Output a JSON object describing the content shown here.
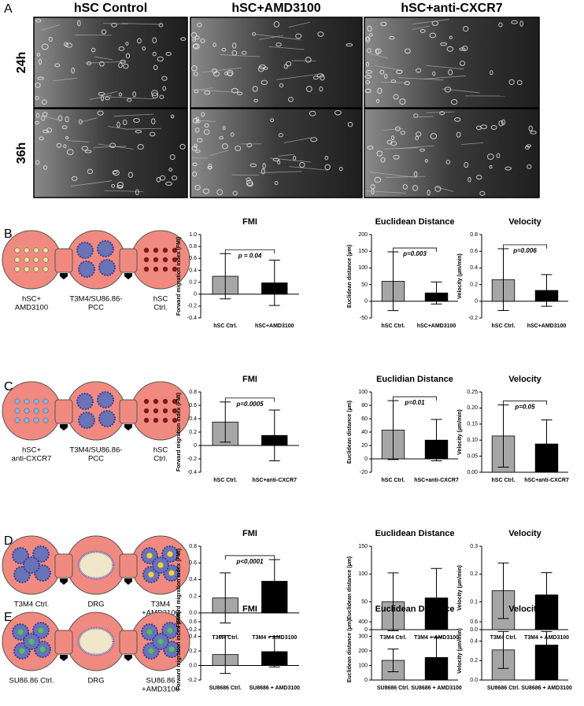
{
  "panels": [
    "A",
    "B",
    "C",
    "D",
    "E"
  ],
  "images": {
    "columns": [
      "hSC Control",
      "hSC+AMD3100",
      "hSC+anti-CXCR7"
    ],
    "rows": [
      "24h",
      "36h"
    ]
  },
  "diagrams": [
    {
      "labels": [
        [
          "hSC+",
          "AMD3100"
        ],
        [
          "T3M4/SU86.86-",
          "PCC"
        ],
        [
          "hSC",
          "Ctrl."
        ]
      ]
    },
    {
      "labels": [
        [
          "hSC+",
          "anti-CXCR7"
        ],
        [
          "T3M4/SU86.86-",
          "PCC"
        ],
        [
          "hSC",
          "Ctrl."
        ]
      ]
    },
    {
      "labels": [
        [
          "T3M4 Ctrl."
        ],
        [
          "DRG"
        ],
        [
          "T3M4",
          "+AMD3100"
        ]
      ]
    },
    {
      "labels": [
        [
          "SU86.86 Ctrl."
        ],
        [
          "DRG"
        ],
        [
          "SU86.86",
          "+AMD3100"
        ]
      ]
    }
  ],
  "chart_data": [
    {
      "type": "bar",
      "title": "FMI",
      "ylabel": "Forward migration index (FMI)",
      "categories": [
        "hSC Ctrl.",
        "hSC+AMD3100"
      ],
      "values": [
        0.3,
        0.19
      ],
      "errors": [
        0.38,
        0.38
      ],
      "colors": [
        "#a6a6a6",
        "#000000"
      ],
      "annotation": "p = 0.04",
      "ylim": [
        -0.4,
        1.0
      ],
      "yticks": [
        -0.4,
        -0.2,
        0,
        0.2,
        0.4,
        0.6,
        0.8,
        {
          "value": 1.0,
          "label": "1.0"
        }
      ]
    },
    {
      "type": "bar",
      "title": "Euclidean Distance",
      "ylabel": "Euclidean distance (µm)",
      "categories": [
        "hSC Ctrl.",
        "hSC+AMD3100"
      ],
      "values": [
        60,
        25
      ],
      "errors": [
        88,
        33
      ],
      "colors": [
        "#a6a6a6",
        "#000000"
      ],
      "annotation": "p=0.003",
      "ylim": [
        -50,
        200
      ],
      "yticks": [
        -50,
        0,
        50,
        100,
        150,
        200
      ]
    },
    {
      "type": "bar",
      "title": "Velocity",
      "ylabel": "Velocity (µm/min)",
      "categories": [
        "hSC Ctrl.",
        "hSC+AMD3100"
      ],
      "values": [
        0.26,
        0.13
      ],
      "errors": [
        0.37,
        0.19
      ],
      "colors": [
        "#a6a6a6",
        "#000000"
      ],
      "annotation": "p=0.006",
      "ylim": [
        -0.2,
        0.8
      ],
      "yticks": [
        -0.2,
        0,
        0.2,
        0.4,
        0.6,
        0.8
      ]
    },
    {
      "type": "bar",
      "title": "FMI",
      "ylabel": "Forward migration index (FMI)",
      "categories": [
        "hSC Ctrl.",
        "hSC+anti-CXCR7"
      ],
      "values": [
        0.35,
        0.15
      ],
      "errors": [
        0.3,
        0.38
      ],
      "colors": [
        "#a6a6a6",
        "#000000"
      ],
      "annotation": "p=0.0005",
      "ylim": [
        -0.4,
        0.8
      ],
      "yticks": [
        -0.4,
        -0.2,
        0,
        0.2,
        0.4,
        0.6,
        0.8
      ]
    },
    {
      "type": "bar",
      "title": "Euclidian Distance",
      "ylabel": "Euclidean distance (µm)",
      "categories": [
        "hSC Ctrl.",
        "hSC+anti-CXCR7"
      ],
      "values": [
        43,
        28
      ],
      "errors": [
        44,
        31
      ],
      "colors": [
        "#a6a6a6",
        "#000000"
      ],
      "annotation": "p=0.01",
      "ylim": [
        -20,
        100
      ],
      "yticks": [
        -20,
        0,
        20,
        40,
        60,
        80,
        100
      ]
    },
    {
      "type": "bar",
      "title": "Velocity",
      "ylabel": "Velocity (µm/min)",
      "categories": [
        "hSC Ctrl.",
        "hSC+anti-CXCR7"
      ],
      "values": [
        0.113,
        0.088
      ],
      "errors": [
        0.097,
        0.075
      ],
      "colors": [
        "#a6a6a6",
        "#000000"
      ],
      "annotation": "p=0.05",
      "ylim": [
        0,
        0.25
      ],
      "yticks": [
        {
          "value": 0,
          "label": "0.00"
        },
        {
          "value": 0.05,
          "label": "0.05"
        },
        {
          "value": 0.1,
          "label": "0.10"
        },
        {
          "value": 0.15,
          "label": "0.15"
        },
        {
          "value": 0.2,
          "label": "0.20"
        },
        {
          "value": 0.25,
          "label": "0.25"
        }
      ]
    },
    {
      "type": "bar",
      "title": "FMI",
      "ylabel": "Forward migration index (FMI)",
      "categories": [
        "T3M4 Ctrl.",
        "T3M4 + AMD3100"
      ],
      "values": [
        0.18,
        0.38
      ],
      "errors": [
        0.3,
        0.26
      ],
      "colors": [
        "#a6a6a6",
        "#000000"
      ],
      "annotation": "p<0,0001",
      "ylim": [
        -0.2,
        0.8
      ],
      "yticks": [
        -0.2,
        {
          "value": 0,
          "label": "0.0"
        },
        0.2,
        0.4,
        0.6,
        0.8
      ]
    },
    {
      "type": "bar",
      "title": "Euclidean Distance",
      "ylabel": "Euclidean distance (µm)",
      "categories": [
        "T3M4 Ctrl.",
        "T3M4 + AMD3100"
      ],
      "values": [
        50,
        57
      ],
      "errors": [
        52,
        53
      ],
      "colors": [
        "#a6a6a6",
        "#000000"
      ],
      "ylim": [
        0,
        150
      ],
      "yticks": [
        0,
        50,
        100,
        150
      ]
    },
    {
      "type": "bar",
      "title": "Velocity",
      "ylabel": "Velocity (µm/min)",
      "categories": [
        "T3M4 Ctrl.",
        "T3M4 + AMD3100"
      ],
      "values": [
        0.14,
        0.125
      ],
      "errors": [
        0.1,
        0.08
      ],
      "colors": [
        "#a6a6a6",
        "#000000"
      ],
      "ylim": [
        0,
        0.3
      ],
      "yticks": [
        {
          "value": 0,
          "label": "0.0"
        },
        0.1,
        0.2,
        0.3
      ]
    },
    {
      "type": "bar",
      "title": "FMI",
      "ylabel": "Forward migration index (FMI)",
      "categories": [
        "SU8686 Ctrl.",
        "SU8686 + AMD3100"
      ],
      "values": [
        0.15,
        0.19
      ],
      "errors": [
        0.26,
        0.21
      ],
      "colors": [
        "#a6a6a6",
        "#000000"
      ],
      "ylim": [
        -0.2,
        0.6
      ],
      "yticks": [
        -0.2,
        {
          "value": 0,
          "label": "0.0"
        },
        0.2,
        0.4,
        0.6
      ]
    },
    {
      "type": "bar",
      "title": "Euclidean Distance",
      "ylabel": "Euclidean distance (µm)",
      "categories": [
        "SU8686 Ctrl.",
        "SU8686 + AMD3100"
      ],
      "values": [
        135,
        155
      ],
      "errors": [
        78,
        140
      ],
      "colors": [
        "#a6a6a6",
        "#000000"
      ],
      "ylim": [
        0,
        400
      ],
      "yticks": [
        0,
        100,
        200,
        300,
        400
      ]
    },
    {
      "type": "bar",
      "title": "Velocity",
      "ylabel": "Velocity (µm/min)",
      "categories": [
        "SU8686 Ctrl.",
        "SU8686 + AMD3100"
      ],
      "values": [
        0.31,
        0.36
      ],
      "errors": [
        0.19,
        0.14
      ],
      "colors": [
        "#a6a6a6",
        "#000000"
      ],
      "ylim": [
        0,
        0.6
      ],
      "yticks": [
        {
          "value": 0,
          "label": "0.0"
        },
        0.2,
        0.4,
        0.6
      ]
    }
  ]
}
